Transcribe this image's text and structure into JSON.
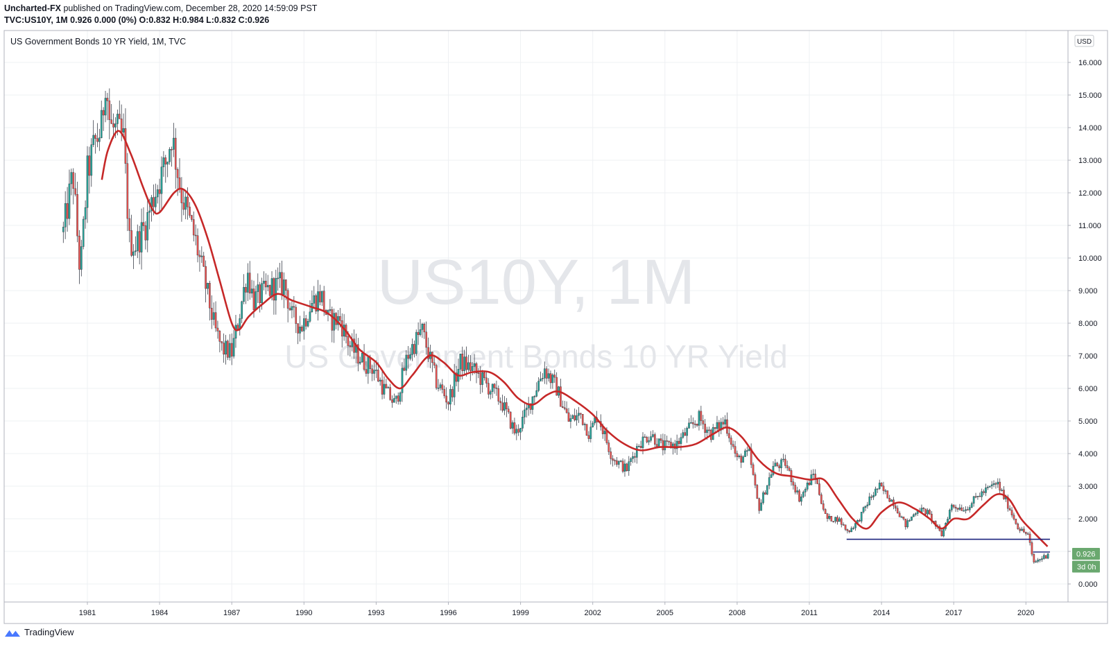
{
  "header": {
    "publisher": "Uncharted-FX",
    "published_text": "published on TradingView.com, December 28, 2020 14:59:09 PST",
    "symbol_line": "TVC:US10Y, 1M  0.926 0.000 (0%)  O:0.832  H:0.984  L:0.832  C:0.926"
  },
  "chart_data": {
    "type": "candlestick",
    "title": "US Government Bonds 10 YR Yield, 1M, TVC",
    "currency": "USD",
    "watermark_symbol": "US10Y, 1M",
    "watermark_name": "US Government Bonds 10 YR Yield",
    "ylim": [
      0,
      16
    ],
    "y_ticks": [
      "0.000",
      "1.000",
      "2.000",
      "3.000",
      "4.000",
      "5.000",
      "6.000",
      "7.000",
      "8.000",
      "9.000",
      "10.000",
      "11.000",
      "12.000",
      "13.000",
      "14.000",
      "15.000",
      "16.000"
    ],
    "x_ticks": [
      "1981",
      "1984",
      "1987",
      "1990",
      "1993",
      "1996",
      "1999",
      "2002",
      "2005",
      "2008",
      "2011",
      "2014",
      "2017",
      "2020"
    ],
    "xlim": [
      1980.0,
      2021.0
    ],
    "colors": {
      "up": "#26a69a",
      "down": "#ef5350",
      "ma": "#c62828",
      "support": "#1a237e",
      "price_tag": "#6aa86f"
    },
    "close_anchors": [
      [
        1980.0,
        10.8
      ],
      [
        1980.4,
        12.6
      ],
      [
        1980.7,
        9.5
      ],
      [
        1981.0,
        12.6
      ],
      [
        1981.3,
        13.5
      ],
      [
        1981.6,
        14.0
      ],
      [
        1981.75,
        15.6
      ],
      [
        1981.95,
        14.0
      ],
      [
        1982.2,
        13.9
      ],
      [
        1982.5,
        13.6
      ],
      [
        1982.75,
        10.5
      ],
      [
        1983.0,
        10.4
      ],
      [
        1983.4,
        11.0
      ],
      [
        1983.8,
        12.0
      ],
      [
        1984.3,
        13.0
      ],
      [
        1984.5,
        13.8
      ],
      [
        1984.9,
        12.0
      ],
      [
        1985.5,
        10.5
      ],
      [
        1985.9,
        9.2
      ],
      [
        1986.3,
        7.8
      ],
      [
        1986.6,
        7.2
      ],
      [
        1987.0,
        7.1
      ],
      [
        1987.3,
        8.2
      ],
      [
        1987.65,
        9.6
      ],
      [
        1987.9,
        8.7
      ],
      [
        1988.3,
        8.9
      ],
      [
        1988.7,
        9.1
      ],
      [
        1989.2,
        9.2
      ],
      [
        1989.5,
        8.2
      ],
      [
        1989.9,
        7.9
      ],
      [
        1990.3,
        8.6
      ],
      [
        1990.7,
        8.9
      ],
      [
        1991.0,
        8.1
      ],
      [
        1991.5,
        8.1
      ],
      [
        1991.9,
        7.3
      ],
      [
        1992.5,
        6.8
      ],
      [
        1992.9,
        6.6
      ],
      [
        1993.3,
        6.0
      ],
      [
        1993.8,
        5.5
      ],
      [
        1994.3,
        7.0
      ],
      [
        1994.9,
        7.8
      ],
      [
        1995.5,
        6.2
      ],
      [
        1996.0,
        5.6
      ],
      [
        1996.5,
        6.8
      ],
      [
        1997.0,
        6.6
      ],
      [
        1997.6,
        6.1
      ],
      [
        1998.2,
        5.6
      ],
      [
        1998.8,
        4.6
      ],
      [
        1999.2,
        5.2
      ],
      [
        1999.8,
        6.3
      ],
      [
        2000.0,
        6.6
      ],
      [
        2000.5,
        6.0
      ],
      [
        2001.0,
        5.0
      ],
      [
        2001.5,
        5.2
      ],
      [
        2001.85,
        4.6
      ],
      [
        2002.2,
        5.2
      ],
      [
        2002.8,
        3.9
      ],
      [
        2003.4,
        3.5
      ],
      [
        2003.9,
        4.3
      ],
      [
        2004.4,
        4.6
      ],
      [
        2004.9,
        4.2
      ],
      [
        2005.5,
        4.3
      ],
      [
        2006.4,
        5.1
      ],
      [
        2006.9,
        4.6
      ],
      [
        2007.5,
        5.0
      ],
      [
        2008.0,
        3.8
      ],
      [
        2008.5,
        4.0
      ],
      [
        2008.9,
        2.3
      ],
      [
        2009.5,
        3.6
      ],
      [
        2010.0,
        3.7
      ],
      [
        2010.6,
        2.6
      ],
      [
        2011.2,
        3.4
      ],
      [
        2011.7,
        2.0
      ],
      [
        2012.2,
        2.0
      ],
      [
        2012.6,
        1.6
      ],
      [
        2013.0,
        1.9
      ],
      [
        2013.5,
        2.6
      ],
      [
        2013.9,
        3.0
      ],
      [
        2014.5,
        2.5
      ],
      [
        2015.0,
        1.8
      ],
      [
        2015.5,
        2.3
      ],
      [
        2015.9,
        2.2
      ],
      [
        2016.5,
        1.5
      ],
      [
        2016.9,
        2.4
      ],
      [
        2017.5,
        2.3
      ],
      [
        2018.0,
        2.7
      ],
      [
        2018.8,
        3.1
      ],
      [
        2019.2,
        2.5
      ],
      [
        2019.7,
        1.7
      ],
      [
        2020.1,
        1.5
      ],
      [
        2020.3,
        0.65
      ],
      [
        2020.8,
        0.85
      ],
      [
        2020.95,
        0.926
      ]
    ],
    "ma_anchors": [
      [
        1981.6,
        12.4
      ],
      [
        1981.85,
        13.3
      ],
      [
        1982.3,
        13.9
      ],
      [
        1982.8,
        13.2
      ],
      [
        1983.3,
        12.2
      ],
      [
        1983.7,
        11.5
      ],
      [
        1984.0,
        11.4
      ],
      [
        1984.6,
        12.0
      ],
      [
        1985.0,
        12.1
      ],
      [
        1985.5,
        11.6
      ],
      [
        1986.0,
        10.6
      ],
      [
        1986.5,
        9.3
      ],
      [
        1987.0,
        8.0
      ],
      [
        1987.3,
        7.8
      ],
      [
        1987.7,
        8.2
      ],
      [
        1988.3,
        8.6
      ],
      [
        1988.9,
        8.9
      ],
      [
        1989.5,
        8.7
      ],
      [
        1990.3,
        8.5
      ],
      [
        1991.0,
        8.3
      ],
      [
        1991.7,
        7.8
      ],
      [
        1992.3,
        7.2
      ],
      [
        1993.0,
        6.8
      ],
      [
        1993.5,
        6.3
      ],
      [
        1994.0,
        6.0
      ],
      [
        1994.5,
        6.4
      ],
      [
        1995.2,
        7.0
      ],
      [
        1995.8,
        6.8
      ],
      [
        1996.4,
        6.4
      ],
      [
        1997.0,
        6.5
      ],
      [
        1997.7,
        6.5
      ],
      [
        1998.3,
        6.2
      ],
      [
        1998.9,
        5.7
      ],
      [
        1999.5,
        5.5
      ],
      [
        2000.1,
        5.8
      ],
      [
        2000.6,
        5.9
      ],
      [
        2001.3,
        5.6
      ],
      [
        2002.0,
        5.2
      ],
      [
        2002.6,
        4.7
      ],
      [
        2003.3,
        4.3
      ],
      [
        2004.0,
        4.1
      ],
      [
        2004.8,
        4.2
      ],
      [
        2005.6,
        4.2
      ],
      [
        2006.3,
        4.3
      ],
      [
        2007.0,
        4.6
      ],
      [
        2007.6,
        4.8
      ],
      [
        2008.2,
        4.5
      ],
      [
        2008.9,
        3.8
      ],
      [
        2009.6,
        3.4
      ],
      [
        2010.3,
        3.3
      ],
      [
        2011.0,
        3.2
      ],
      [
        2011.6,
        3.2
      ],
      [
        2012.2,
        2.6
      ],
      [
        2012.8,
        2.0
      ],
      [
        2013.4,
        1.7
      ],
      [
        2014.0,
        2.2
      ],
      [
        2014.7,
        2.5
      ],
      [
        2015.4,
        2.3
      ],
      [
        2016.0,
        2.0
      ],
      [
        2016.5,
        1.7
      ],
      [
        2017.0,
        2.0
      ],
      [
        2017.6,
        2.0
      ],
      [
        2018.2,
        2.4
      ],
      [
        2018.8,
        2.75
      ],
      [
        2019.3,
        2.6
      ],
      [
        2019.8,
        2.0
      ],
      [
        2020.3,
        1.6
      ],
      [
        2020.9,
        1.15
      ]
    ],
    "support_line": {
      "x": [
        2012.55,
        2021.0
      ],
      "y": 1.37
    },
    "current_level": {
      "x": [
        2020.3,
        2021.0
      ],
      "y": 0.98
    },
    "last_price_label": "0.926",
    "countdown_label": "3d 0h"
  },
  "footer": {
    "brand": "TradingView"
  }
}
